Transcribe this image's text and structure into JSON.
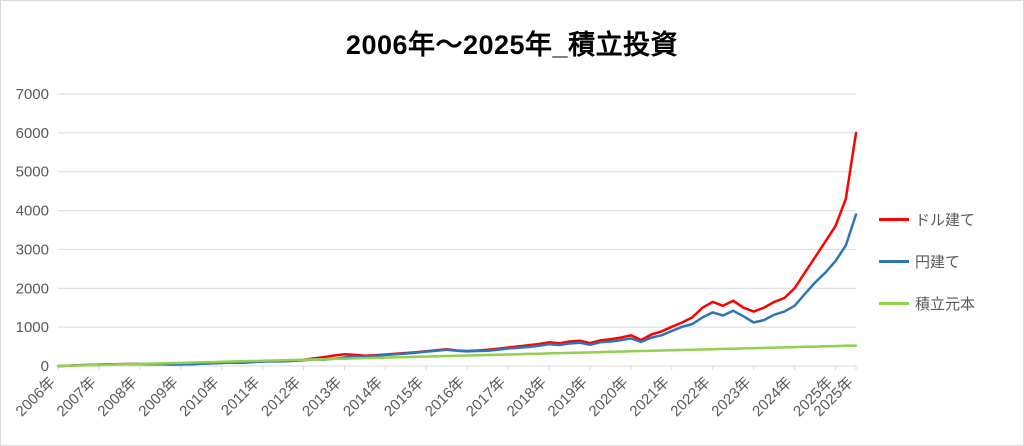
{
  "title": "2006年～2025年_積立投資",
  "colors": {
    "background": "#ffffff",
    "gridline": "#d9d9d9",
    "axis_line": "#d9d9d9",
    "tick_label": "#595959",
    "title_text": "#000000"
  },
  "chart_data": {
    "type": "line",
    "title": "2006年～2025年_積立投資",
    "xlabel": "",
    "ylabel": "",
    "xlim": [
      2006,
      2025.5
    ],
    "ylim": [
      0,
      7000
    ],
    "grid": "horizontal",
    "legend_position": "right",
    "x_start": 2006,
    "x_step": 0.25,
    "y_ticks": [
      0,
      1000,
      2000,
      3000,
      4000,
      5000,
      6000,
      7000
    ],
    "x_tick_positions": [
      2006,
      2007,
      2008,
      2009,
      2010,
      2011,
      2012,
      2013,
      2014,
      2015,
      2016,
      2017,
      2018,
      2019,
      2020,
      2021,
      2022,
      2023,
      2024,
      2025,
      2025.5
    ],
    "x_tick_labels": [
      "2006年",
      "2007年",
      "2008年",
      "2009年",
      "2010年",
      "2011年",
      "2012年",
      "2013年",
      "2014年",
      "2015年",
      "2016年",
      "2017年",
      "2018年",
      "2019年",
      "2020年",
      "2021年",
      "2022年",
      "2023年",
      "2024年",
      "2025年",
      "2025年"
    ],
    "series": [
      {
        "id": "usd",
        "name": "ドル建て",
        "color": "#ff0000",
        "values": [
          0,
          9,
          18,
          27,
          36,
          42,
          48,
          52,
          55,
          52,
          48,
          38,
          42,
          50,
          62,
          72,
          84,
          94,
          88,
          106,
          120,
          130,
          124,
          140,
          160,
          195,
          230,
          270,
          300,
          285,
          265,
          275,
          295,
          315,
          335,
          355,
          380,
          405,
          430,
          400,
          385,
          400,
          420,
          445,
          475,
          505,
          535,
          565,
          610,
          585,
          630,
          650,
          590,
          660,
          690,
          730,
          790,
          670,
          810,
          890,
          1010,
          1120,
          1250,
          1500,
          1650,
          1550,
          1680,
          1500,
          1400,
          1500,
          1650,
          1750,
          2000,
          2400,
          2800,
          3200,
          3600,
          4300,
          6000
        ]
      },
      {
        "id": "jpy",
        "name": "円建て",
        "color": "#2e75b6",
        "values": [
          0,
          8,
          17,
          26,
          34,
          40,
          46,
          50,
          52,
          50,
          52,
          40,
          44,
          48,
          60,
          68,
          78,
          88,
          84,
          100,
          112,
          122,
          118,
          132,
          150,
          170,
          165,
          185,
          225,
          250,
          240,
          260,
          285,
          300,
          320,
          345,
          370,
          395,
          420,
          390,
          375,
          385,
          395,
          420,
          450,
          470,
          490,
          520,
          560,
          540,
          580,
          600,
          545,
          610,
          630,
          665,
          710,
          620,
          730,
          790,
          900,
          1010,
          1080,
          1250,
          1380,
          1300,
          1420,
          1280,
          1120,
          1180,
          1320,
          1400,
          1550,
          1850,
          2150,
          2400,
          2700,
          3100,
          3900
        ]
      },
      {
        "id": "principal",
        "name": "積立元本",
        "color": "#92d050",
        "values": [
          0,
          7,
          14,
          20,
          27,
          34,
          41,
          47,
          54,
          61,
          68,
          74,
          81,
          88,
          95,
          101,
          108,
          115,
          122,
          128,
          135,
          142,
          149,
          155,
          162,
          169,
          176,
          182,
          189,
          196,
          203,
          209,
          216,
          223,
          230,
          236,
          243,
          250,
          257,
          263,
          270,
          277,
          284,
          290,
          297,
          304,
          311,
          317,
          324,
          331,
          338,
          344,
          351,
          358,
          365,
          371,
          378,
          385,
          392,
          398,
          405,
          412,
          419,
          425,
          432,
          439,
          446,
          452,
          459,
          466,
          473,
          479,
          486,
          493,
          500,
          506,
          513,
          520,
          526
        ]
      }
    ]
  }
}
